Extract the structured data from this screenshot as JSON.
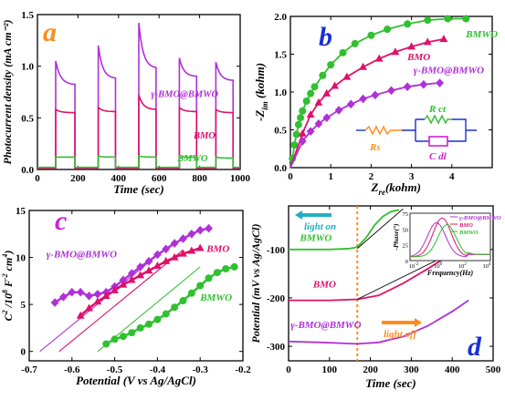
{
  "chart_data": [
    {
      "type": "line",
      "panel_letter": "a",
      "xlabel": "Time (sec)",
      "ylabel": "Photocurrent density (mA cm⁻²)",
      "xlim": [
        0,
        1000
      ],
      "ylim": [
        0,
        1.5
      ],
      "xticks": [
        0,
        200,
        400,
        600,
        800,
        1000
      ],
      "yticks": [
        0.0,
        0.5,
        1.0,
        1.5
      ],
      "xtick_labels": [
        "0",
        "200",
        "400",
        "600",
        "800",
        "1000"
      ],
      "ytick_labels": [
        "0.0",
        "0.5",
        "1.0",
        "1.5"
      ],
      "series": [
        {
          "name": "γ-BMO@BMWO",
          "color": "#b030d8",
          "on_off": [
            [
              90,
              185,
              1.05,
              0.82
            ],
            [
              300,
              385,
              1.2,
              0.88
            ],
            [
              500,
              585,
              1.42,
              0.98
            ],
            [
              700,
              785,
              1.08,
              0.9
            ],
            [
              880,
              965,
              1.04,
              0.86
            ]
          ]
        },
        {
          "name": "BMO",
          "color": "#e0106a",
          "on_off": [
            [
              90,
              185,
              0.58,
              0.55
            ],
            [
              300,
              385,
              0.6,
              0.56
            ],
            [
              500,
              585,
              0.72,
              0.58
            ],
            [
              700,
              785,
              0.6,
              0.56
            ],
            [
              880,
              965,
              0.58,
              0.55
            ]
          ]
        },
        {
          "name": "BMWO",
          "color": "#30c030",
          "on_off": [
            [
              90,
              185,
              0.12,
              0.12
            ],
            [
              300,
              385,
              0.13,
              0.12
            ],
            [
              500,
              585,
              0.13,
              0.12
            ],
            [
              700,
              785,
              0.12,
              0.12
            ],
            [
              880,
              965,
              0.12,
              0.11
            ]
          ]
        }
      ],
      "labels": [
        {
          "text": "γ-BMO@BMWO",
          "x": 560,
          "y": 0.7,
          "color": "#b030d8"
        },
        {
          "text": "BMO",
          "x": 770,
          "y": 0.3,
          "color": "#e0106a"
        },
        {
          "text": "BMWO",
          "x": 690,
          "y": 0.08,
          "color": "#30c030"
        }
      ]
    },
    {
      "type": "scatter",
      "panel_letter": "b",
      "xlabel_main": "Z",
      "xlabel_sub": "re",
      "xlabel_rest": "(kohm)",
      "ylabel_main": "-Z",
      "ylabel_sub": "im",
      "ylabel_rest": " (kohm)",
      "xlim": [
        0,
        5
      ],
      "ylim": [
        0,
        2.0
      ],
      "xticks": [
        0,
        1,
        2,
        3,
        4
      ],
      "yticks": [
        0.0,
        0.5,
        1.0,
        1.5,
        2.0
      ],
      "xtick_labels": [
        "0",
        "1",
        "2",
        "3",
        "4"
      ],
      "ytick_labels": [
        "0.0",
        "0.5",
        "1.0",
        "1.5",
        "2.0"
      ],
      "series": [
        {
          "name": "BMWO",
          "color": "#30c030",
          "marker": "circle",
          "x": [
            0.05,
            0.1,
            0.15,
            0.2,
            0.25,
            0.3,
            0.4,
            0.5,
            0.6,
            0.8,
            1.0,
            1.3,
            1.6,
            2.0,
            2.4,
            2.9,
            3.4,
            3.9,
            4.35
          ],
          "y": [
            0.12,
            0.3,
            0.44,
            0.57,
            0.66,
            0.75,
            0.88,
            0.98,
            1.07,
            1.22,
            1.36,
            1.52,
            1.64,
            1.75,
            1.83,
            1.9,
            1.95,
            1.97,
            1.97
          ]
        },
        {
          "name": "BMO",
          "color": "#e0106a",
          "marker": "triangle",
          "x": [
            0.3,
            0.5,
            0.7,
            0.9,
            1.1,
            1.4,
            1.8,
            2.2,
            2.6,
            3.0,
            3.4,
            3.8
          ],
          "y": [
            0.45,
            0.7,
            0.86,
            0.98,
            1.08,
            1.2,
            1.33,
            1.44,
            1.53,
            1.6,
            1.66,
            1.7
          ]
        },
        {
          "name": "γ-BMO@BMWO",
          "color": "#b030d8",
          "marker": "diamond",
          "x": [
            0.3,
            0.5,
            0.7,
            0.9,
            1.2,
            1.5,
            1.8,
            2.1,
            2.5,
            2.9,
            3.3,
            3.7
          ],
          "y": [
            0.35,
            0.48,
            0.58,
            0.66,
            0.76,
            0.84,
            0.91,
            0.96,
            1.02,
            1.07,
            1.1,
            1.12
          ]
        }
      ],
      "labels": [
        {
          "text": "BMWO",
          "x": 4.35,
          "y": 1.72,
          "color": "#30c030"
        },
        {
          "text": "BMO",
          "x": 2.9,
          "y": 1.42,
          "color": "#e0106a"
        },
        {
          "text": "γ-BMO@BMWO",
          "x": 3.05,
          "y": 1.25,
          "color": "#b030d8"
        }
      ],
      "circuit": {
        "rs": "Rs",
        "rct": "R ct",
        "cdl": "C dl"
      }
    },
    {
      "type": "scatter",
      "panel_letter": "c",
      "xlabel": "Potential (V vs Ag/AgCl)",
      "ylabel_main": "C",
      "ylabel_sup1": "2",
      "ylabel_mid": " /10",
      "ylabel_sup2": "8",
      "ylabel_mid2": " F",
      "ylabel_sup3": "-2",
      "ylabel_mid3": " cm",
      "ylabel_sup4": "4",
      "ylabel_end": ")",
      "xlim": [
        -0.7,
        -0.2
      ],
      "ylim": [
        -1,
        15
      ],
      "xticks": [
        -0.7,
        -0.6,
        -0.5,
        -0.4,
        -0.3,
        -0.2
      ],
      "yticks": [
        0,
        5,
        10,
        15
      ],
      "xtick_labels": [
        "-0.7",
        "-0.6",
        "-0.5",
        "-0.4",
        "-0.3",
        "-0.2"
      ],
      "ytick_labels": [
        "0",
        "5",
        "10",
        "15"
      ],
      "series": [
        {
          "name": "γ-BMO@BMWO",
          "color": "#b030d8",
          "marker": "diamond",
          "x": [
            -0.64,
            -0.62,
            -0.6,
            -0.58,
            -0.56,
            -0.54,
            -0.52,
            -0.5,
            -0.48,
            -0.46,
            -0.44,
            -0.42,
            -0.4,
            -0.38,
            -0.36,
            -0.34,
            -0.32,
            -0.3,
            -0.28
          ],
          "y": [
            5.2,
            5.8,
            6.3,
            6.3,
            5.9,
            6.1,
            6.3,
            6.9,
            7.6,
            8.3,
            9.0,
            9.6,
            10.3,
            10.9,
            11.5,
            12.0,
            12.5,
            12.9,
            13.1
          ]
        },
        {
          "name": "BMO",
          "color": "#e0106a",
          "marker": "triangle",
          "x": [
            -0.58,
            -0.56,
            -0.54,
            -0.52,
            -0.5,
            -0.48,
            -0.46,
            -0.44,
            -0.42,
            -0.4,
            -0.38,
            -0.36,
            -0.34,
            -0.32,
            -0.3
          ],
          "y": [
            3.8,
            4.6,
            5.3,
            5.9,
            6.5,
            7.1,
            7.6,
            8.1,
            8.6,
            9.1,
            9.6,
            10.0,
            10.4,
            10.7,
            11.0
          ]
        },
        {
          "name": "BMWO",
          "color": "#30c030",
          "marker": "circle",
          "x": [
            -0.52,
            -0.5,
            -0.48,
            -0.46,
            -0.44,
            -0.42,
            -0.4,
            -0.38,
            -0.36,
            -0.34,
            -0.32,
            -0.3,
            -0.28,
            -0.26,
            -0.24,
            -0.22
          ],
          "y": [
            0.8,
            1.3,
            1.6,
            2.0,
            2.5,
            2.9,
            3.4,
            4.0,
            4.7,
            5.4,
            6.2,
            7.0,
            7.8,
            8.4,
            8.8,
            9.0
          ]
        }
      ],
      "fit_lines": [
        {
          "color": "#b030d8",
          "x": [
            -0.675,
            -0.38
          ],
          "y": [
            0.0,
            11.0
          ]
        },
        {
          "color": "#e0106a",
          "x": [
            -0.63,
            -0.34
          ],
          "y": [
            0.0,
            10.8
          ]
        },
        {
          "color": "#30c030",
          "x": [
            -0.54,
            -0.3
          ],
          "y": [
            0.0,
            9.0
          ]
        }
      ],
      "labels": [
        {
          "text": "γ-BMO@BMWO",
          "x": -0.66,
          "y": 10.0,
          "color": "#b030d8"
        },
        {
          "text": "BMO",
          "x": -0.285,
          "y": 10.6,
          "color": "#e0106a"
        },
        {
          "text": "BMWO",
          "x": -0.3,
          "y": 5.4,
          "color": "#30c030"
        }
      ]
    },
    {
      "type": "line",
      "panel_letter": "d",
      "xlabel": "Time (sec)",
      "ylabel": "Potential (mV vs Ag/AgCl)",
      "xlim": [
        0,
        500
      ],
      "ylim": [
        -330,
        -10
      ],
      "xticks": [
        0,
        100,
        200,
        300,
        400,
        500
      ],
      "yticks": [
        -300,
        -200,
        -100
      ],
      "xtick_labels": [
        "0",
        "100",
        "200",
        "300",
        "400",
        "500"
      ],
      "ytick_labels": [
        "-300",
        "-200",
        "-100"
      ],
      "light_switch_x": 168,
      "series": [
        {
          "name": "BMWO",
          "color": "#30c030",
          "x": [
            0,
            100,
            150,
            168,
            190,
            210,
            230,
            250,
            270
          ],
          "y": [
            -100,
            -100,
            -98,
            -95,
            -75,
            -50,
            -32,
            -22,
            -18
          ]
        },
        {
          "name": "BMO",
          "color": "#e0106a",
          "x": [
            0,
            100,
            168,
            220,
            280,
            340,
            400,
            440
          ],
          "y": [
            -205,
            -205,
            -203,
            -195,
            -170,
            -140,
            -108,
            -92
          ]
        },
        {
          "name": "γ-BMO@BMWO",
          "color": "#b030d8",
          "x": [
            0,
            80,
            168,
            220,
            280,
            340,
            400,
            440
          ],
          "y": [
            -290,
            -292,
            -295,
            -292,
            -280,
            -258,
            -228,
            -205
          ]
        }
      ],
      "fit_lines": [
        {
          "color": "#000000",
          "x": [
            168,
            280
          ],
          "y": [
            -98,
            -16
          ]
        },
        {
          "color": "#000000",
          "x": [
            168,
            440
          ],
          "y": [
            -203,
            -90
          ]
        }
      ],
      "labels": [
        {
          "text": "BMWO",
          "x": 28,
          "y": -82,
          "color": "#30c030"
        },
        {
          "text": "BMO",
          "x": 60,
          "y": -178,
          "color": "#e0106a"
        },
        {
          "text": "γ-BMO@BMWO",
          "x": 5,
          "y": -262,
          "color": "#b030d8"
        }
      ],
      "annotations": {
        "light_on": "light on",
        "light_off": "light off"
      },
      "inset": {
        "ylabel": "-Phase(°)",
        "xlabel": "Frequency(Hz)",
        "yticks": [
          "0",
          "25",
          "50",
          "75"
        ],
        "xticks": [
          "10",
          "10",
          "10",
          "10"
        ],
        "xtick_sups": [
          "-2",
          "0",
          "2",
          "4"
        ],
        "legend": [
          "γ-BMO@BMWO",
          "BMO",
          "BMWO"
        ]
      }
    }
  ]
}
